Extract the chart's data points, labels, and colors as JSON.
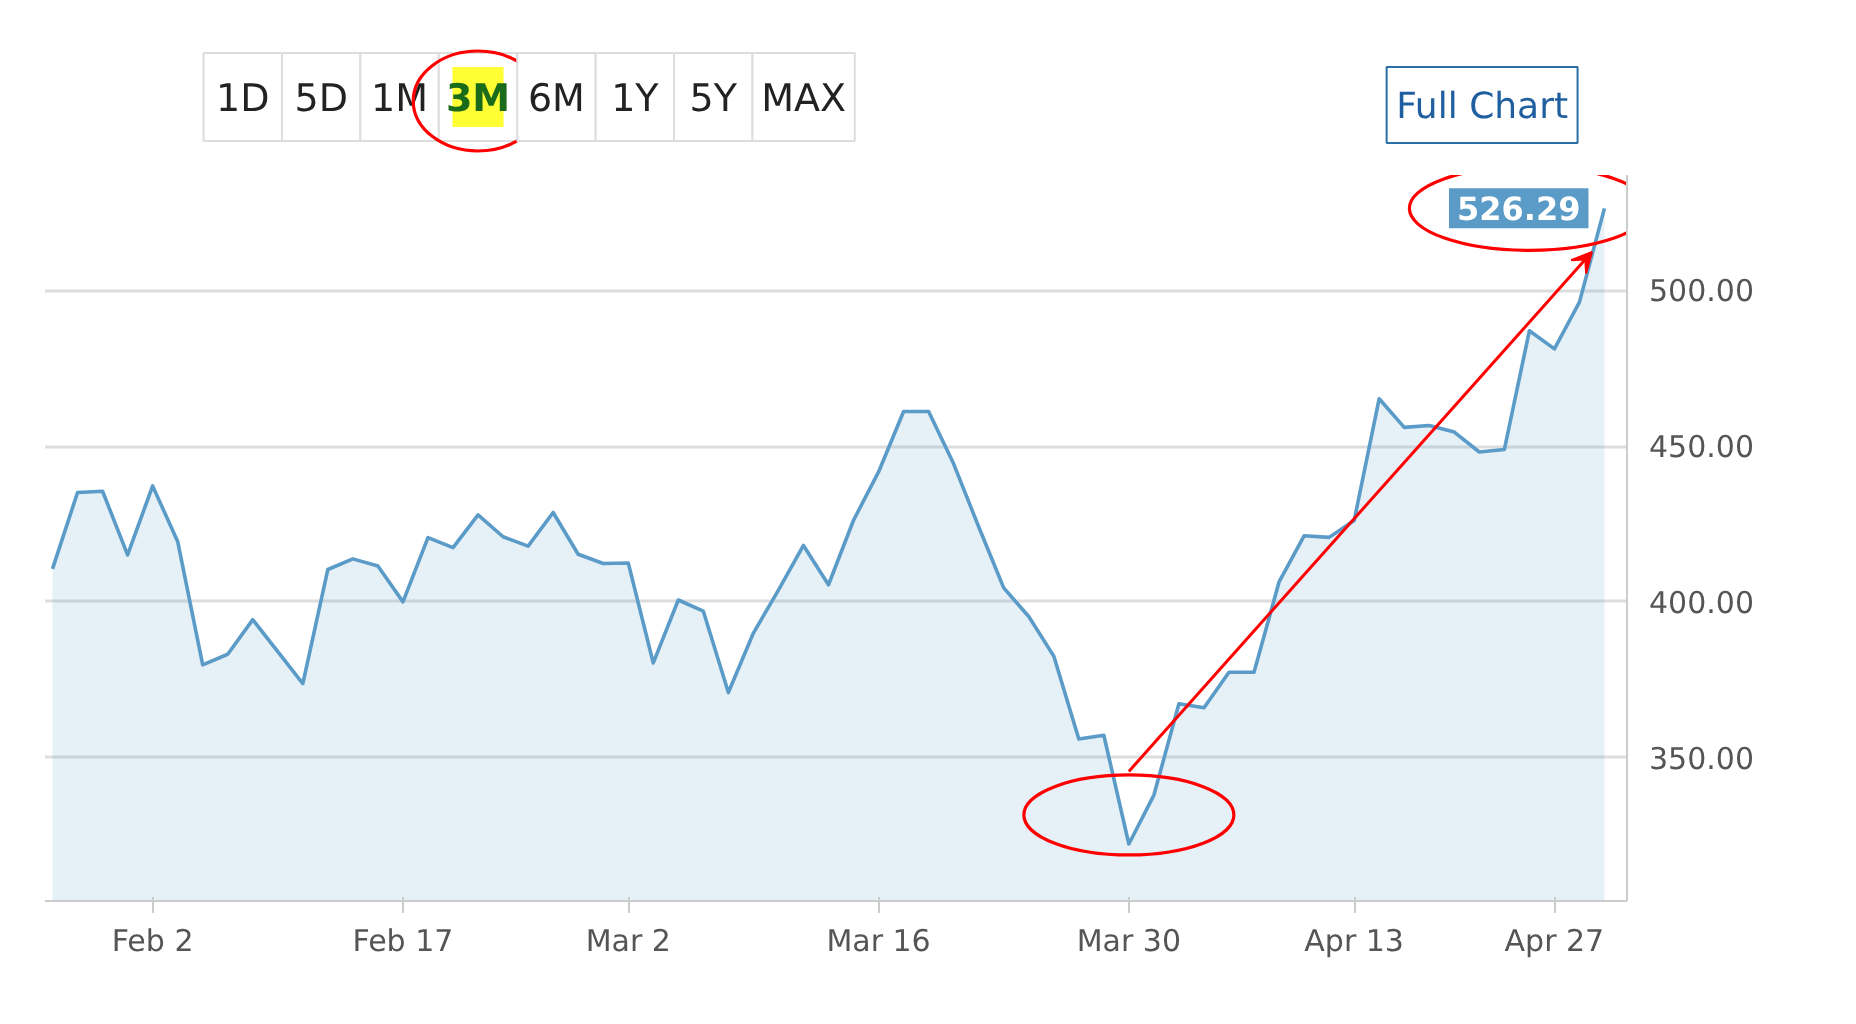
{
  "chart_data": {
    "type": "area",
    "categories": [
      null,
      null,
      null,
      null,
      "Feb 2",
      null,
      null,
      null,
      null,
      null,
      null,
      null,
      null,
      null,
      "Feb 17",
      null,
      null,
      null,
      null,
      null,
      null,
      null,
      null,
      "Mar 2",
      null,
      null,
      null,
      null,
      null,
      null,
      null,
      null,
      null,
      "Mar 16",
      null,
      null,
      null,
      null,
      null,
      null,
      null,
      null,
      null,
      "Mar 30",
      null,
      null,
      null,
      null,
      null,
      null,
      null,
      null,
      "Apr 13",
      null,
      null,
      null,
      null,
      null,
      null,
      null,
      "Apr 27",
      null,
      null
    ],
    "series": [
      {
        "color": "#5a9bc8",
        "values": [
          410.6,
          435.1,
          435.5,
          415.1,
          437.2,
          419.4,
          379.8,
          383.2,
          394.3,
          384,
          373.8,
          410.4,
          413.8,
          411.5,
          400,
          420.6,
          417.4,
          427.9,
          420.9,
          417.9,
          428.7,
          415.3,
          412.3,
          412.5,
          380.4,
          400.6,
          397,
          370.9,
          390,
          403.8,
          418.1,
          405.5,
          426.2,
          441.7,
          461.1,
          461.1,
          444.3,
          424.1,
          404.5,
          395.3,
          382.6,
          356,
          357.2,
          322.3,
          338,
          367.3,
          366,
          377.4,
          377.4,
          406.4,
          421.2,
          420.7,
          426.1,
          465.2,
          456,
          456.6,
          454.5,
          448.1,
          448.9,
          487,
          481.2,
          496.2,
          526.29
        ]
      }
    ],
    "ylim": [
      304,
      537
    ],
    "yticks": [
      {
        "value": 350,
        "label": "350.00"
      },
      {
        "value": 400,
        "label": "400.00"
      },
      {
        "value": 450,
        "label": "450.00"
      },
      {
        "value": 500,
        "label": "500.00"
      }
    ],
    "grid": "y",
    "annotations": [
      "526.29",
      "1D",
      "5D",
      "1M",
      "3M",
      "6M",
      "1Y",
      "5Y",
      "MAX",
      "Full Chart"
    ]
  }
}
